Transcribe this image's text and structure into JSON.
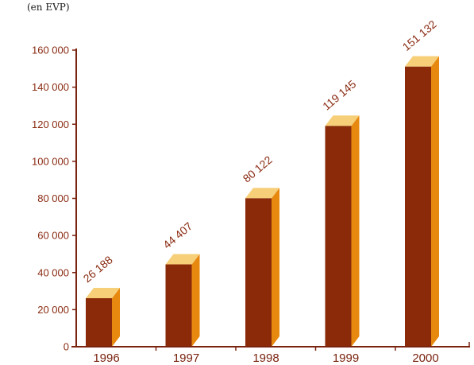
{
  "chart_data": {
    "type": "bar",
    "unit_label": "(en EVP)",
    "title": "",
    "xlabel": "",
    "ylabel": "",
    "categories": [
      "1996",
      "1997",
      "1998",
      "1999",
      "2000"
    ],
    "values": [
      26188,
      44407,
      80122,
      119145,
      151132
    ],
    "data_labels": [
      "26 188",
      "44 407",
      "80 122",
      "119 145",
      "151 132"
    ],
    "ylim": [
      0,
      160000
    ],
    "yticks": [
      0,
      20000,
      40000,
      60000,
      80000,
      100000,
      120000,
      140000,
      160000
    ],
    "ytick_labels": [
      "0",
      "20 000",
      "40 000",
      "60 000",
      "80 000",
      "100 000",
      "120 000",
      "140 000",
      "160 000"
    ],
    "grid": false,
    "legend": "none",
    "style": "3d-bars"
  },
  "colors": {
    "bar_front": "#8b2a08",
    "bar_side": "#e8890f",
    "bar_top": "#f6cf78",
    "axis": "#7a2410",
    "label": "#8a2b12"
  }
}
